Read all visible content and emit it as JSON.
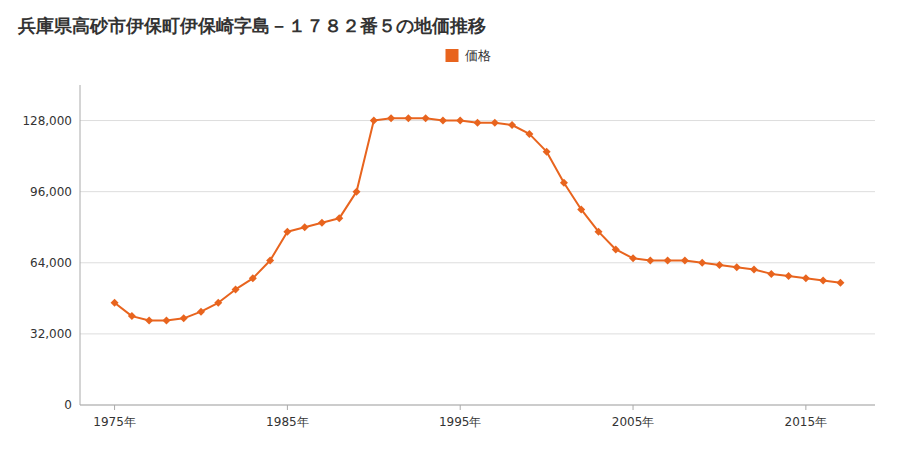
{
  "chart_data": {
    "type": "line",
    "title": "兵庫県高砂市伊保町伊保崎字島－１７８２番５の地価推移",
    "x": [
      1975,
      1976,
      1977,
      1978,
      1979,
      1980,
      1981,
      1982,
      1983,
      1984,
      1985,
      1986,
      1987,
      1988,
      1989,
      1990,
      1991,
      1992,
      1993,
      1994,
      1995,
      1996,
      1997,
      1998,
      1999,
      2000,
      2001,
      2002,
      2003,
      2004,
      2005,
      2006,
      2007,
      2008,
      2009,
      2010,
      2011,
      2012,
      2013,
      2014,
      2015,
      2016,
      2017
    ],
    "series": [
      {
        "name": "価格",
        "color": "#E8641E",
        "marker": "diamond",
        "line_style": "solid",
        "values": [
          46000,
          40000,
          38000,
          38000,
          39000,
          42000,
          46000,
          52000,
          57000,
          65000,
          78000,
          80000,
          82000,
          84000,
          96000,
          128000,
          129000,
          129000,
          129000,
          128000,
          128000,
          127000,
          127000,
          126000,
          122000,
          114000,
          100000,
          88000,
          78000,
          70000,
          66000,
          65000,
          65000,
          65000,
          64000,
          63000,
          62000,
          61000,
          59000,
          58000,
          57000,
          56000,
          55000
        ]
      }
    ],
    "xlim": [
      1973,
      2019
    ],
    "xticks": [
      {
        "value": 1975,
        "label": "1975年"
      },
      {
        "value": 1985,
        "label": "1985年"
      },
      {
        "value": 1995,
        "label": "1995年"
      },
      {
        "value": 2005,
        "label": "2005年"
      },
      {
        "value": 2015,
        "label": "2015年"
      }
    ],
    "ylim": [
      0,
      144000
    ],
    "yticks": [
      0,
      {
        "value": 32000,
        "label": "32,000"
      },
      {
        "value": 64000,
        "label": "64,000"
      },
      {
        "value": 96000,
        "label": "96,000"
      },
      {
        "value": 128000,
        "label": "128,000"
      }
    ],
    "grid": true,
    "legend": "top"
  }
}
